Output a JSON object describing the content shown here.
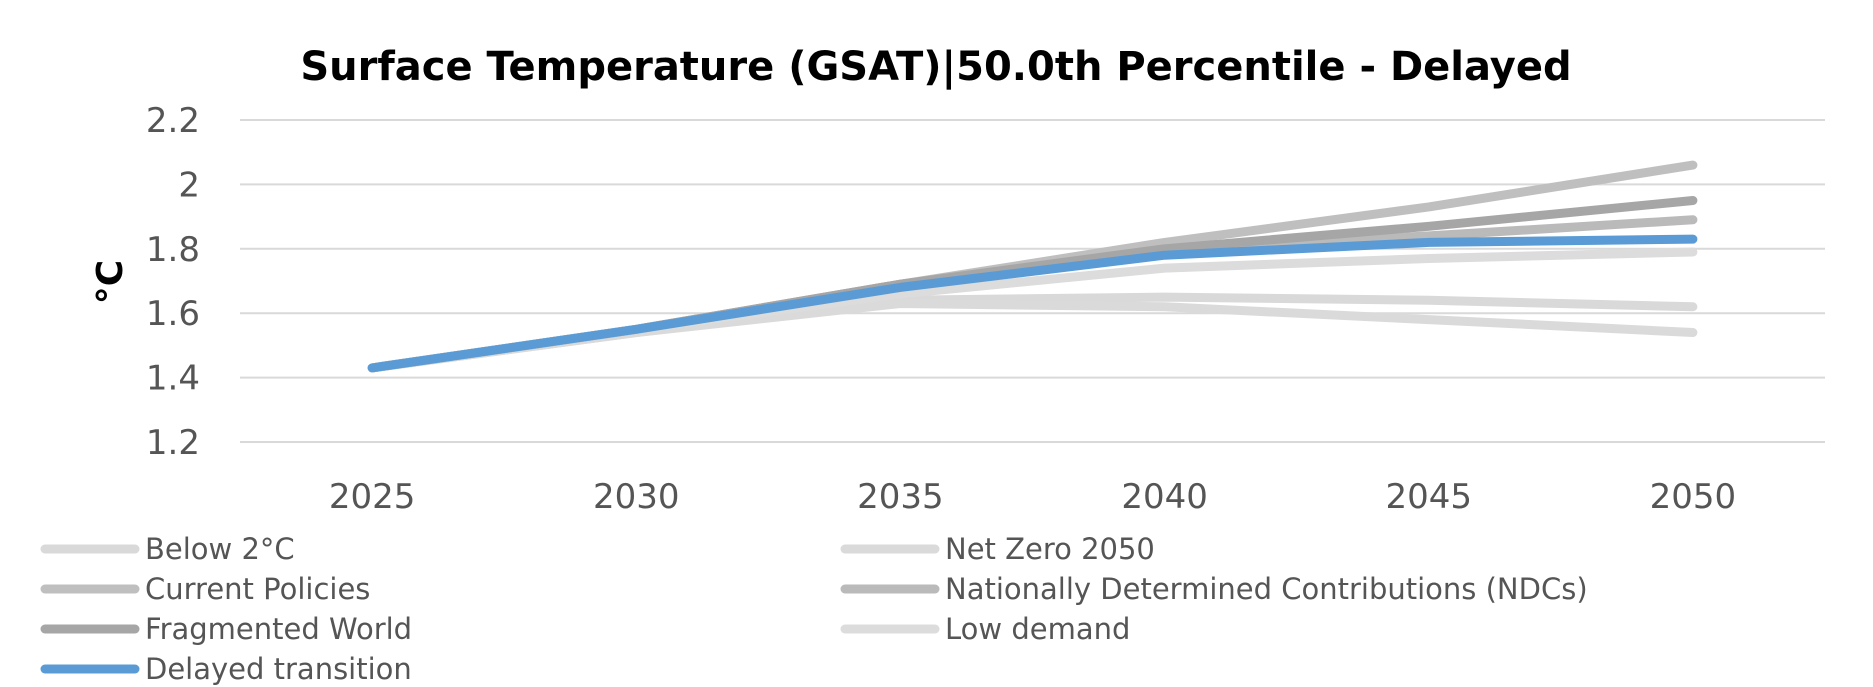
{
  "chart_data": {
    "type": "line",
    "title": "Surface Temperature (GSAT)|50.0th Percentile - Delayed",
    "ylabel": "°C",
    "xlabel": "",
    "x": [
      "2025",
      "2030",
      "2035",
      "2040",
      "2045",
      "2050"
    ],
    "ylim": [
      1.2,
      2.2
    ],
    "yticks": [
      "1.2",
      "1.4",
      "1.6",
      "1.8",
      "2",
      "2.2"
    ],
    "grid": true,
    "legend_position": "bottom",
    "series": [
      {
        "name": "Below 2°C",
        "values": [
          1.43,
          1.54,
          1.64,
          1.65,
          1.64,
          1.62
        ],
        "color": "#d9d9d9"
      },
      {
        "name": "Net Zero 2050",
        "values": [
          1.43,
          1.54,
          1.63,
          1.62,
          1.58,
          1.54
        ],
        "color": "#dadada"
      },
      {
        "name": "Current Policies",
        "values": [
          1.43,
          1.55,
          1.69,
          1.82,
          1.93,
          2.06
        ],
        "color": "#bfbfbf"
      },
      {
        "name": "Nationally Determined Contributions (NDCs)",
        "values": [
          1.43,
          1.55,
          1.69,
          1.8,
          1.84,
          1.89
        ],
        "color": "#bababa"
      },
      {
        "name": "Fragmented World",
        "values": [
          1.43,
          1.55,
          1.69,
          1.8,
          1.87,
          1.95
        ],
        "color": "#a6a6a6"
      },
      {
        "name": "Low demand",
        "values": [
          1.43,
          1.55,
          1.66,
          1.74,
          1.77,
          1.79
        ],
        "color": "#dcdcdc"
      },
      {
        "name": "Delayed transition",
        "values": [
          1.43,
          1.55,
          1.68,
          1.78,
          1.82,
          1.83
        ],
        "color": "#5b9bd5"
      }
    ]
  }
}
